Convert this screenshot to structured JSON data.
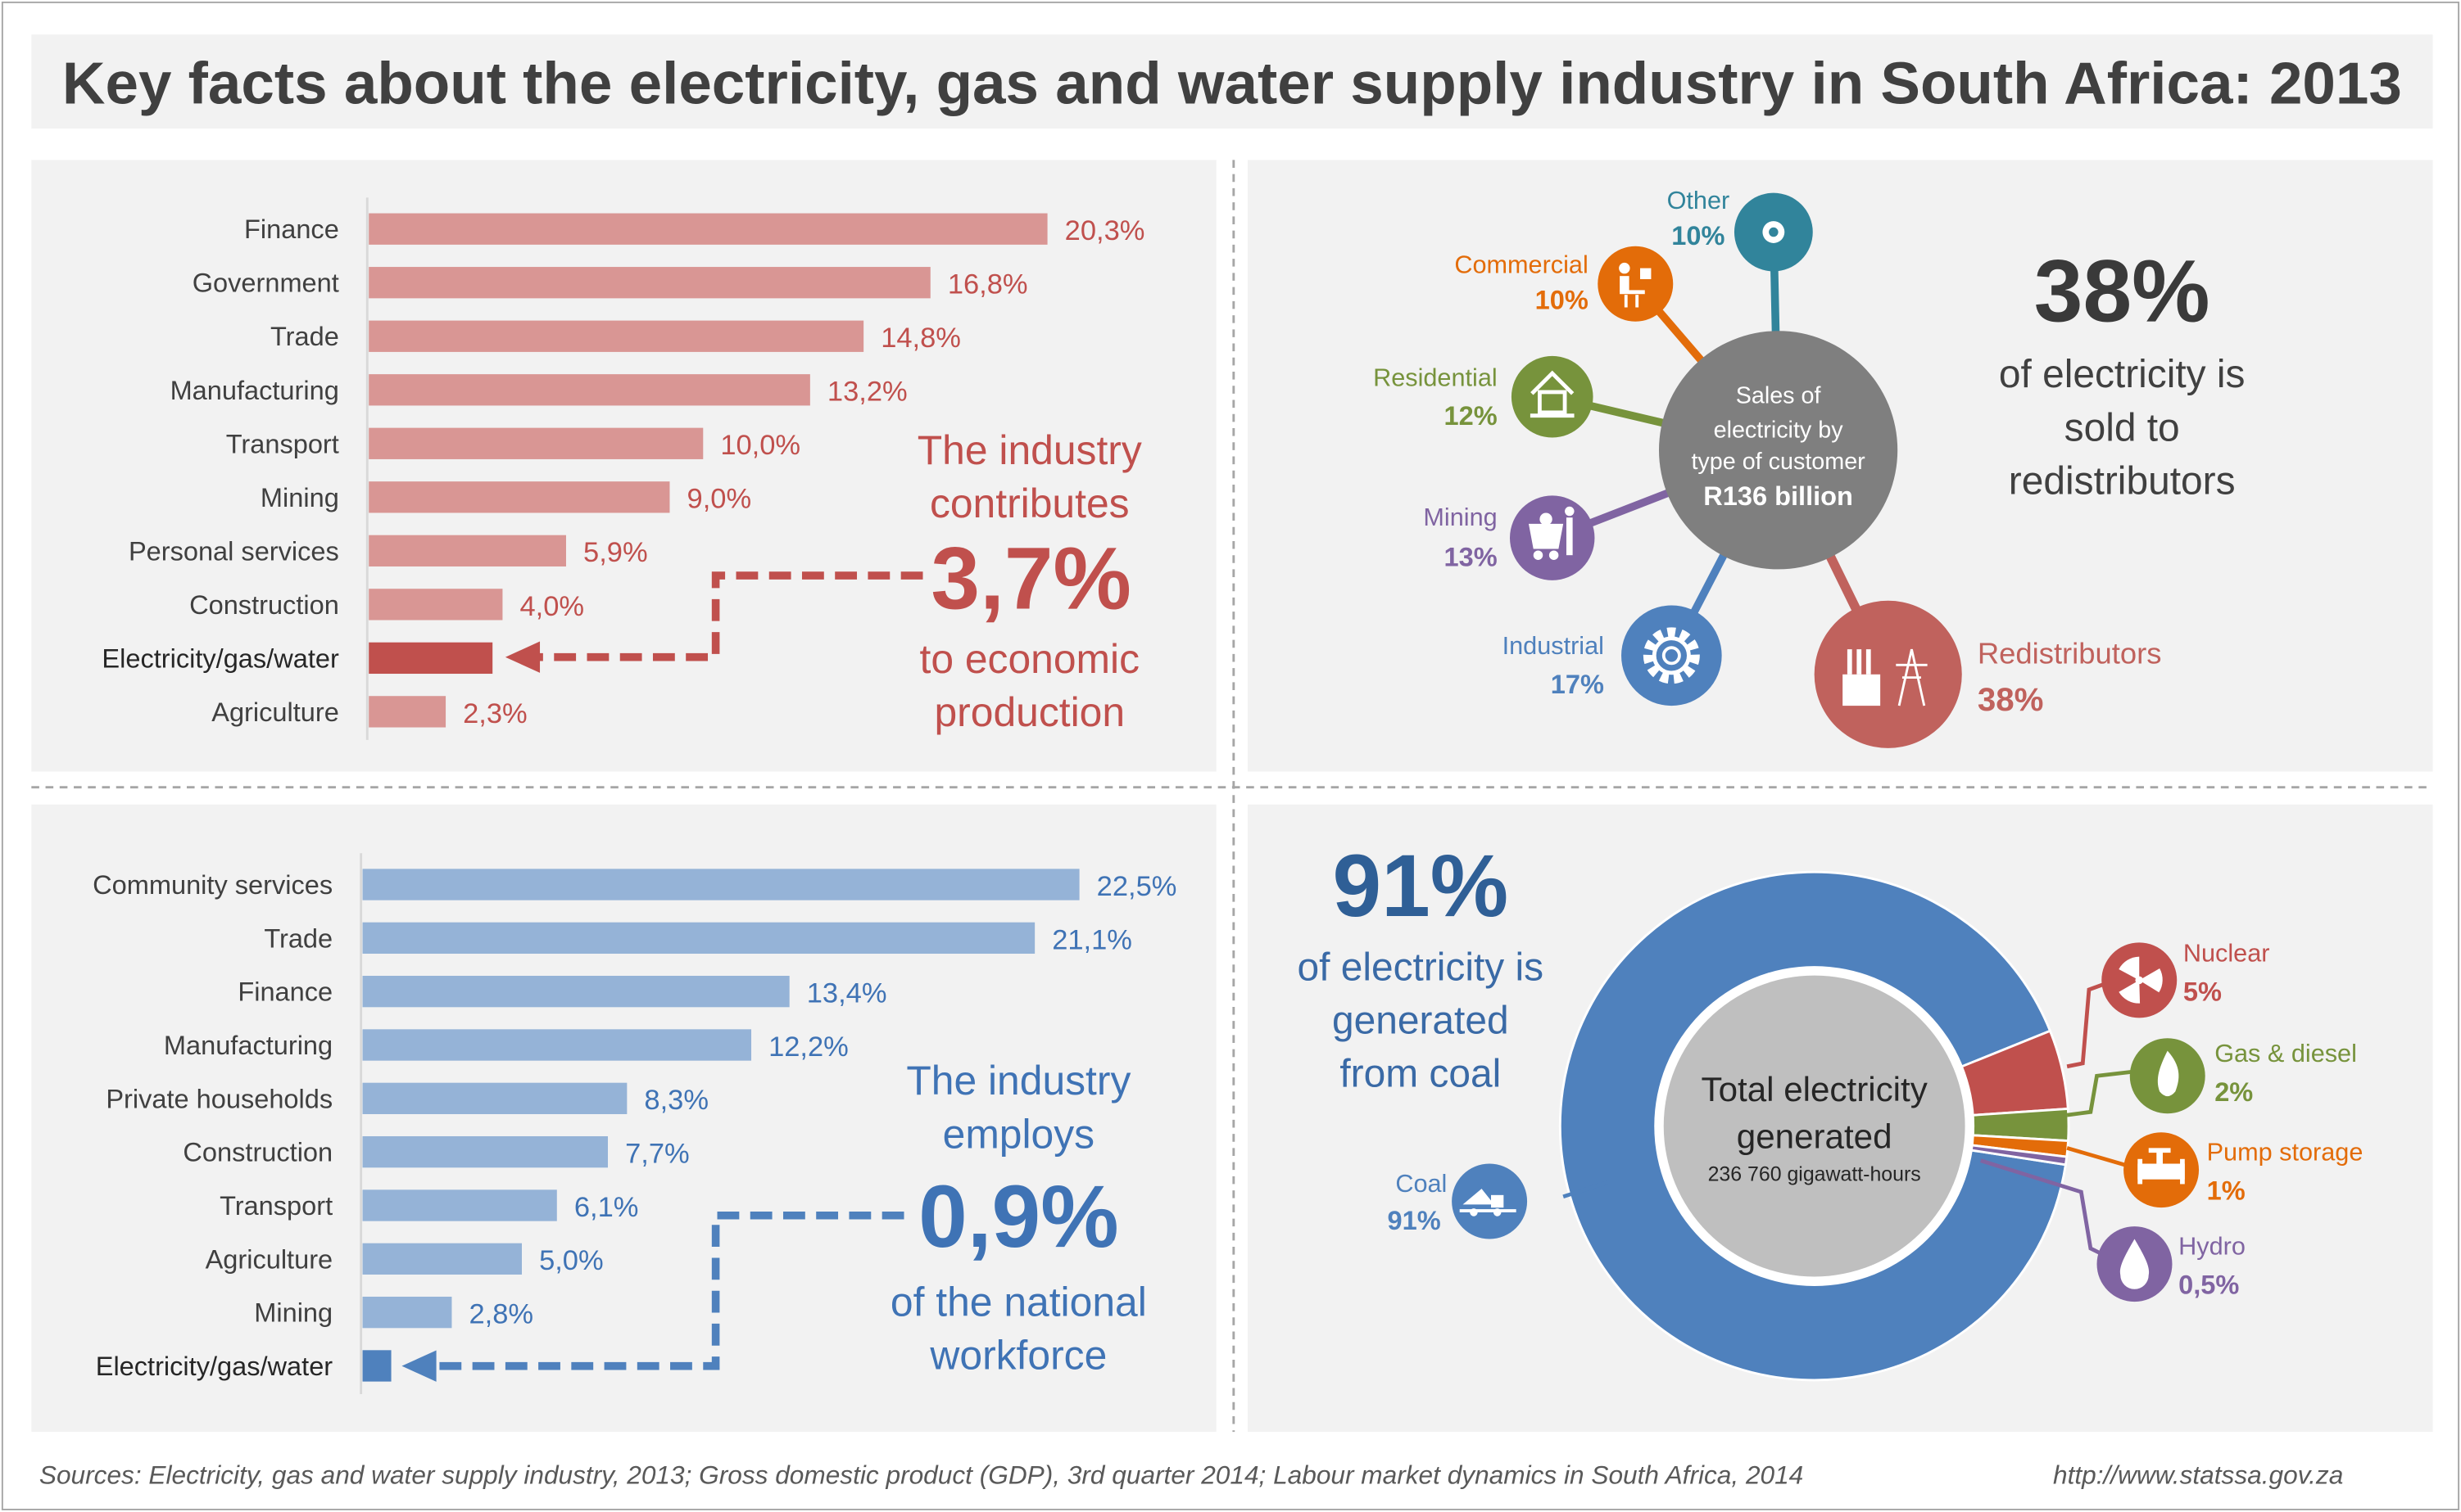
{
  "title": "Key facts about the electricity, gas and water supply industry in South Africa: 2013",
  "colors": {
    "red": "#c0504d",
    "red_light": "#d99694",
    "blue": "#4f81bd",
    "blue_light": "#95b3d7",
    "green": "#77933c",
    "orange": "#e36c09",
    "purple": "#8064a2",
    "teal": "#31849b",
    "gray": "#7f7f7f",
    "panel": "#f2f2f2"
  },
  "gdp_panel": {
    "callout": [
      "The industry",
      "contributes",
      "3,7%",
      "to economic",
      "production"
    ]
  },
  "employment_panel": {
    "callout": [
      "The industry",
      "employs",
      "0,9%",
      "of the national",
      "workforce"
    ]
  },
  "sales_panel": {
    "center": [
      "Sales of",
      "electricity by",
      "type of customer",
      "R136 billion"
    ],
    "headline": "38%",
    "headline_text": [
      "of electricity is",
      "sold to",
      "redistributors"
    ],
    "nodes": [
      {
        "label": "Other",
        "value": "10%",
        "icon": "circle-dot-icon"
      },
      {
        "label": "Commercial",
        "value": "10%",
        "icon": "office-worker-icon"
      },
      {
        "label": "Residential",
        "value": "12%",
        "icon": "house-icon"
      },
      {
        "label": "Mining",
        "value": "13%",
        "icon": "mine-cart-icon"
      },
      {
        "label": "Industrial",
        "value": "17%",
        "icon": "gear-icon"
      },
      {
        "label": "Redistributors",
        "value": "38%",
        "icon": "factory-pylon-icon"
      }
    ]
  },
  "generation_panel": {
    "headline": "91%",
    "headline_text": [
      "of electricity is",
      "generated",
      "from coal"
    ],
    "center": [
      "Total electricity",
      "generated",
      "236 760 gigawatt-hours"
    ],
    "legend": [
      {
        "label": "Coal",
        "value": "91%",
        "icon": "dump-truck-icon"
      },
      {
        "label": "Nuclear",
        "value": "5%",
        "icon": "radiation-icon"
      },
      {
        "label": "Gas & diesel",
        "value": "2%",
        "icon": "flame-icon"
      },
      {
        "label": "Pump storage",
        "value": "1%",
        "icon": "valve-icon"
      },
      {
        "label": "Hydro",
        "value": "0,5%",
        "icon": "water-drop-icon"
      }
    ]
  },
  "footer": {
    "sources": "Sources: Electricity, gas and water supply industry, 2013; Gross domestic product (GDP), 3rd quarter 2014; Labour market dynamics in South Africa, 2014",
    "url": "http://www.statssa.gov.za"
  },
  "chart_data": [
    {
      "type": "bar",
      "orientation": "horizontal",
      "categories": [
        "Finance",
        "Government",
        "Trade",
        "Manufacturing",
        "Transport",
        "Mining",
        "Personal services",
        "Construction",
        "Electricity/gas/water",
        "Agriculture"
      ],
      "values": [
        20.3,
        16.8,
        14.8,
        13.2,
        10.0,
        9.0,
        5.9,
        4.0,
        3.7,
        2.3
      ],
      "labels": [
        "20,3%",
        "16,8%",
        "14,8%",
        "13,2%",
        "10,0%",
        "9,0%",
        "5,9%",
        "4,0%",
        "",
        "2,3%"
      ],
      "highlight": "Electricity/gas/water",
      "unit": "%"
    },
    {
      "type": "bar",
      "orientation": "horizontal",
      "categories": [
        "Community services",
        "Trade",
        "Finance",
        "Manufacturing",
        "Private households",
        "Construction",
        "Transport",
        "Agriculture",
        "Mining",
        "Electricity/gas/water"
      ],
      "values": [
        22.5,
        21.1,
        13.4,
        12.2,
        8.3,
        7.7,
        6.1,
        5.0,
        2.8,
        0.9
      ],
      "labels": [
        "22,5%",
        "21,1%",
        "13,4%",
        "12,2%",
        "8,3%",
        "7,7%",
        "6,1%",
        "5,0%",
        "2,8%",
        ""
      ],
      "highlight": "Electricity/gas/water",
      "unit": "%"
    },
    {
      "type": "pie",
      "categories": [
        "Other",
        "Commercial",
        "Residential",
        "Mining",
        "Industrial",
        "Redistributors"
      ],
      "values": [
        10,
        10,
        12,
        13,
        17,
        38
      ],
      "unit": "%"
    },
    {
      "type": "pie",
      "donut": true,
      "categories": [
        "Coal",
        "Nuclear",
        "Gas & diesel",
        "Pump storage",
        "Hydro"
      ],
      "values": [
        91,
        5,
        2,
        1,
        0.5
      ],
      "unit": "%"
    }
  ]
}
